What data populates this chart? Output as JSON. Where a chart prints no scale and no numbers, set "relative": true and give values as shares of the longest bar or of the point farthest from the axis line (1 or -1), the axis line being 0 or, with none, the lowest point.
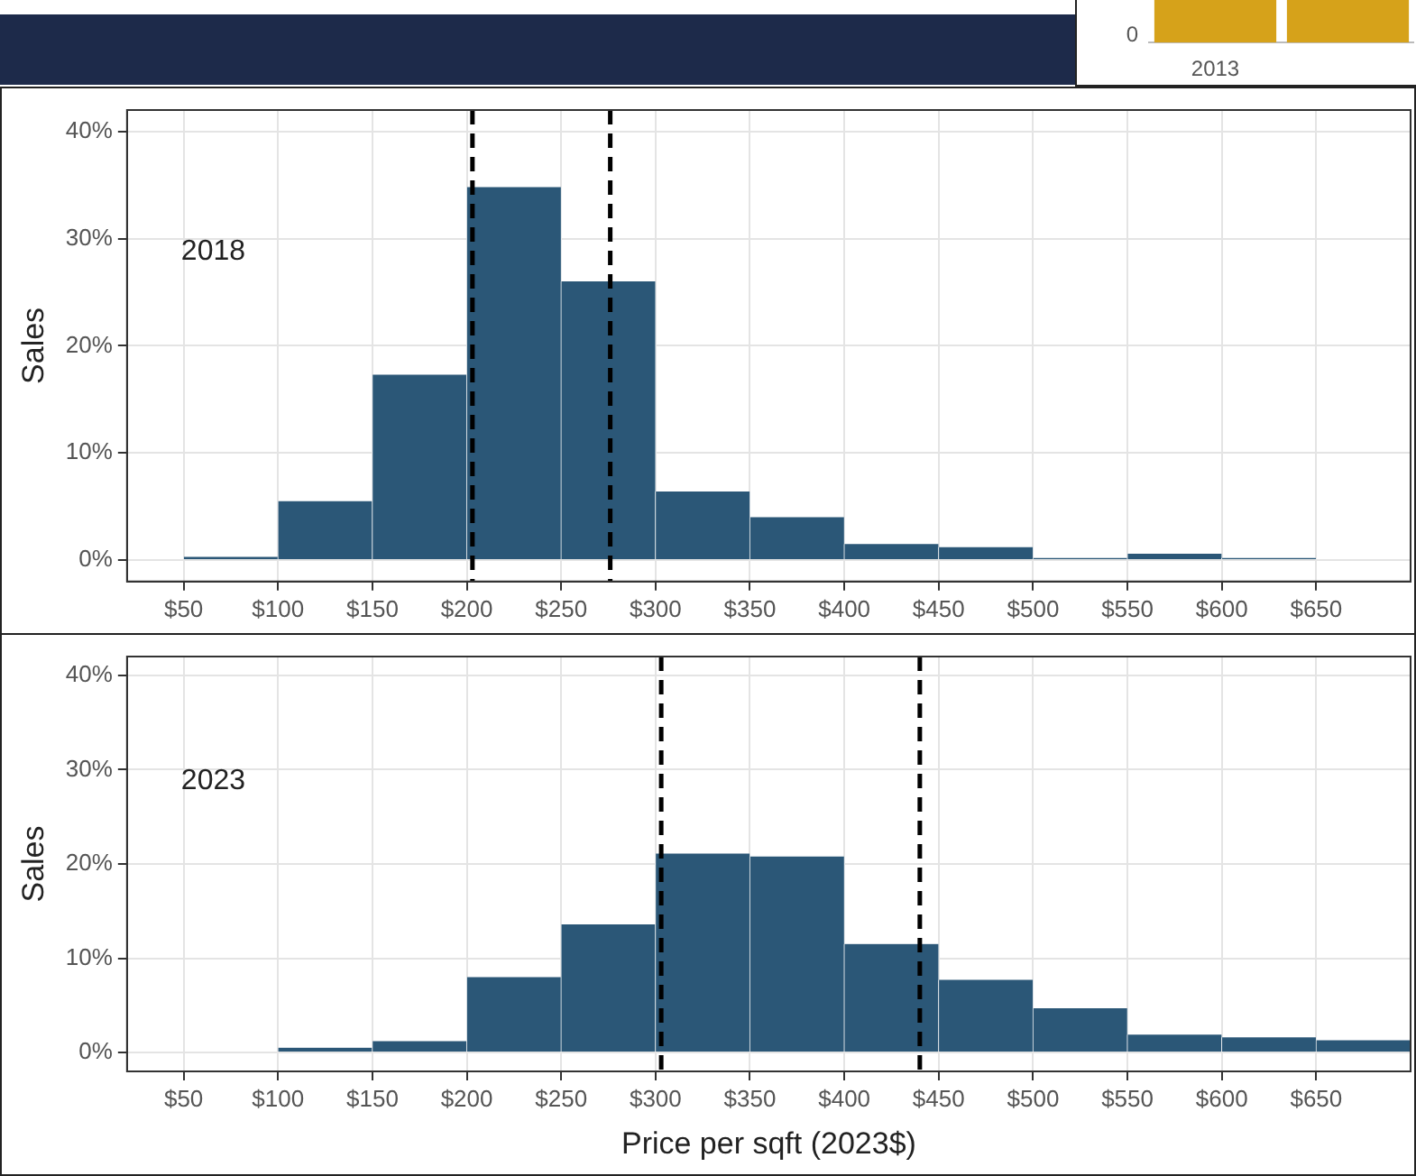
{
  "chart_data": [
    {
      "type": "bar",
      "relative": true,
      "categories": [
        "2013",
        null
      ],
      "values": [
        1,
        1
      ],
      "colors": [
        "#d6a21a",
        "#d6a21a"
      ],
      "annotations": [
        "0"
      ],
      "grid": false,
      "legend": false
    },
    {
      "type": "histogram",
      "ylabel": "Sales",
      "annotations": [
        "2018"
      ],
      "color": "#2b5777",
      "bins": [
        50,
        100,
        150,
        200,
        250,
        300,
        350,
        400,
        450,
        500,
        550,
        600,
        650
      ],
      "values": [
        0.3,
        5.5,
        17.3,
        34.8,
        26.0,
        6.4,
        4.0,
        1.5,
        1.2,
        0.2,
        0.6,
        0.2
      ],
      "xlim": [
        20,
        700
      ],
      "ylim": [
        -2,
        42
      ],
      "xticks": [
        {
          "value": 50,
          "label": "$50"
        },
        {
          "value": 100,
          "label": "$100"
        },
        {
          "value": 150,
          "label": "$150"
        },
        {
          "value": 200,
          "label": "$200"
        },
        {
          "value": 250,
          "label": "$250"
        },
        {
          "value": 300,
          "label": "$300"
        },
        {
          "value": 350,
          "label": "$350"
        },
        {
          "value": 400,
          "label": "$400"
        },
        {
          "value": 450,
          "label": "$450"
        },
        {
          "value": 500,
          "label": "$500"
        },
        {
          "value": 550,
          "label": "$550"
        },
        {
          "value": 600,
          "label": "$600"
        },
        {
          "value": 650,
          "label": "$650"
        }
      ],
      "yticks": [
        {
          "value": 0,
          "label": "0%"
        },
        {
          "value": 10,
          "label": "10%"
        },
        {
          "value": 20,
          "label": "20%"
        },
        {
          "value": 30,
          "label": "30%"
        },
        {
          "value": 40,
          "label": "40%"
        }
      ],
      "ref_lines": [
        {
          "axis": "x",
          "value": 203,
          "color": "#000000",
          "line_style": "dashed"
        },
        {
          "axis": "x",
          "value": 276,
          "color": "#000000",
          "line_style": "dashed"
        }
      ],
      "grid": true,
      "legend": false
    },
    {
      "type": "histogram",
      "ylabel": "Sales",
      "xlabel": "Price per sqft (2023$)",
      "annotations": [
        "2023"
      ],
      "color": "#2b5777",
      "bins": [
        50,
        100,
        150,
        200,
        250,
        300,
        350,
        400,
        450,
        500,
        550,
        600,
        650,
        700
      ],
      "values": [
        0.1,
        0.5,
        1.2,
        8.0,
        13.6,
        21.1,
        20.8,
        11.5,
        7.7,
        4.7,
        1.9,
        1.6,
        1.3
      ],
      "xlim": [
        20,
        700
      ],
      "ylim": [
        -2,
        42
      ],
      "xticks": [
        {
          "value": 50,
          "label": "$50"
        },
        {
          "value": 100,
          "label": "$100"
        },
        {
          "value": 150,
          "label": "$150"
        },
        {
          "value": 200,
          "label": "$200"
        },
        {
          "value": 250,
          "label": "$250"
        },
        {
          "value": 300,
          "label": "$300"
        },
        {
          "value": 350,
          "label": "$350"
        },
        {
          "value": 400,
          "label": "$400"
        },
        {
          "value": 450,
          "label": "$450"
        },
        {
          "value": 500,
          "label": "$500"
        },
        {
          "value": 550,
          "label": "$550"
        },
        {
          "value": 600,
          "label": "$600"
        },
        {
          "value": 650,
          "label": "$650"
        }
      ],
      "yticks": [
        {
          "value": 0,
          "label": "0%"
        },
        {
          "value": 10,
          "label": "10%"
        },
        {
          "value": 20,
          "label": "20%"
        },
        {
          "value": 30,
          "label": "30%"
        },
        {
          "value": 40,
          "label": "40%"
        }
      ],
      "ref_lines": [
        {
          "axis": "x",
          "value": 303,
          "color": "#000000",
          "line_style": "dashed"
        },
        {
          "axis": "x",
          "value": 440,
          "color": "#000000",
          "line_style": "dashed"
        }
      ],
      "grid": true,
      "legend": false
    }
  ]
}
